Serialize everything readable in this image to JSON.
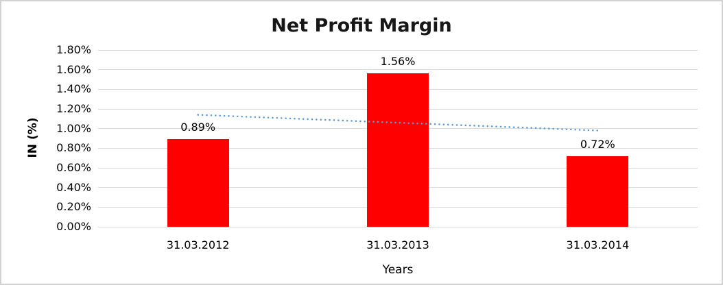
{
  "chart_data": {
    "type": "bar",
    "title": "Net Profit Margin",
    "xlabel": "Years",
    "ylabel": "IN (%)",
    "categories": [
      "31.03.2012",
      "31.03.2013",
      "31.03.2014"
    ],
    "values": [
      0.89,
      1.56,
      0.72
    ],
    "value_labels": [
      "0.89%",
      "1.56%",
      "0.72%"
    ],
    "ylim": [
      0,
      1.8
    ],
    "ytick_step": 0.2,
    "ytick_labels": [
      "0.00%",
      "0.20%",
      "0.40%",
      "0.60%",
      "0.80%",
      "1.00%",
      "1.20%",
      "1.40%",
      "1.60%",
      "1.80%"
    ],
    "grid": true,
    "legend": "none",
    "bar_color": "#ff0000",
    "gridline_color": "#d9d9d9",
    "background_color": "#ffffff",
    "border_color": "#d2d2d2",
    "trendline": {
      "type": "linear",
      "style": "dotted",
      "color": "#5b9bd5",
      "values": [
        1.14,
        0.98
      ]
    }
  }
}
